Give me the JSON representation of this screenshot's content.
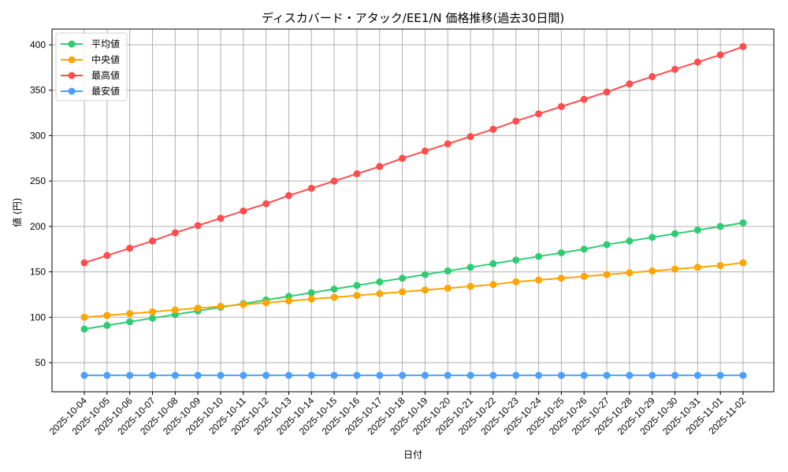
{
  "chart_data": {
    "type": "line",
    "title": "ディスカバード・アタック/EE1/N 価格推移(過去30日間)",
    "xlabel": "日付",
    "ylabel": "値 (円)",
    "ylim": [
      18,
      418
    ],
    "yticks": [
      50,
      100,
      150,
      200,
      250,
      300,
      350,
      400
    ],
    "grid": true,
    "legend_position": "upper left",
    "categories": [
      "2025-10-04",
      "2025-10-05",
      "2025-10-06",
      "2025-10-07",
      "2025-10-08",
      "2025-10-09",
      "2025-10-10",
      "2025-10-11",
      "2025-10-12",
      "2025-10-13",
      "2025-10-14",
      "2025-10-15",
      "2025-10-16",
      "2025-10-17",
      "2025-10-18",
      "2025-10-19",
      "2025-10-20",
      "2025-10-21",
      "2025-10-22",
      "2025-10-23",
      "2025-10-24",
      "2025-10-25",
      "2025-10-26",
      "2025-10-27",
      "2025-10-28",
      "2025-10-29",
      "2025-10-30",
      "2025-10-31",
      "2025-11-01",
      "2025-11-02"
    ],
    "series": [
      {
        "name": "平均値",
        "color": "#2ecc71",
        "values": [
          87,
          91,
          95,
          99,
          103,
          107,
          111,
          115,
          119,
          123,
          127,
          131,
          135,
          139,
          143,
          147,
          151,
          155,
          159,
          163,
          167,
          171,
          175,
          180,
          184,
          188,
          192,
          196,
          200,
          204
        ]
      },
      {
        "name": "中央値",
        "color": "#ffa500",
        "values": [
          100,
          102,
          104,
          106,
          108,
          110,
          112,
          114,
          116,
          118,
          120,
          122,
          124,
          126,
          128,
          130,
          132,
          134,
          136,
          139,
          141,
          143,
          145,
          147,
          149,
          151,
          153,
          155,
          157,
          160
        ]
      },
      {
        "name": "最高値",
        "color": "#ff4d4d",
        "values": [
          160,
          168,
          176,
          184,
          193,
          201,
          209,
          217,
          225,
          234,
          242,
          250,
          258,
          266,
          275,
          283,
          291,
          299,
          307,
          316,
          324,
          332,
          340,
          348,
          357,
          365,
          373,
          381,
          389,
          398
        ]
      },
      {
        "name": "最安値",
        "color": "#4d9fff",
        "values": [
          36,
          36,
          36,
          36,
          36,
          36,
          36,
          36,
          36,
          36,
          36,
          36,
          36,
          36,
          36,
          36,
          36,
          36,
          36,
          36,
          36,
          36,
          36,
          36,
          36,
          36,
          36,
          36,
          36,
          36
        ]
      }
    ]
  }
}
